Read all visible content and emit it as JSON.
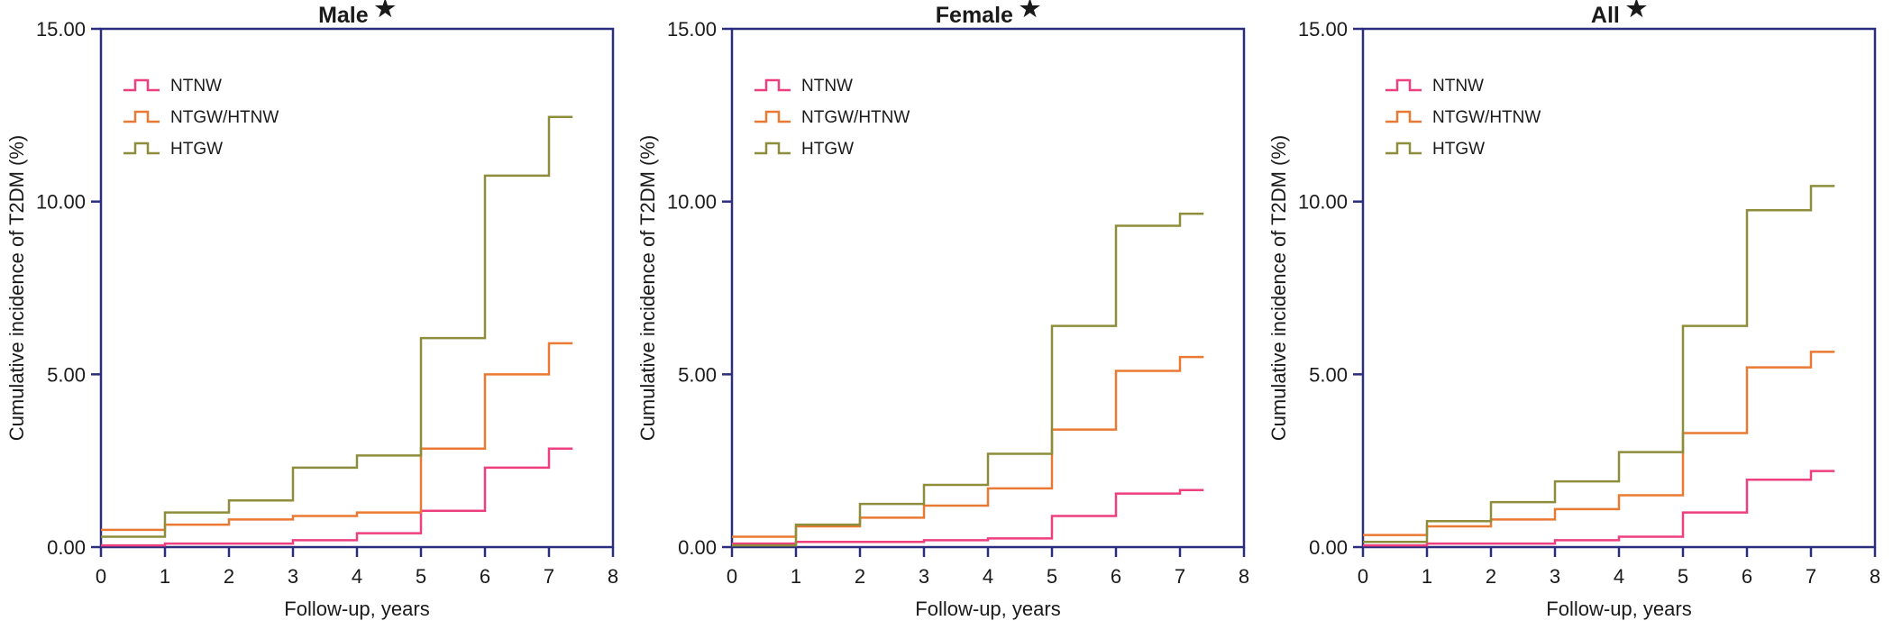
{
  "figure": {
    "ylabel": "Cumulative incidence of T2DM (%)",
    "xlabel": "Follow-up, years",
    "star": "★",
    "legend": [
      "NTNW",
      "NTGW/HTNW",
      "HTGW"
    ],
    "colors": {
      "axis": "#2B2E7F",
      "text": "#1a1a1a",
      "NTNW": "#EE3F7F",
      "NTGW_HTNW": "#EA7A33",
      "HTGW": "#8D8D3C"
    }
  },
  "chart_data": [
    {
      "type": "line",
      "subtype": "step-cumulative-incidence",
      "title": "Male",
      "xlabel": "Follow-up, years",
      "ylabel": "Cumulative incidence of T2DM (%)",
      "xlim": [
        0,
        8
      ],
      "ylim": [
        0,
        15
      ],
      "x_ticks": [
        "0",
        "1",
        "2",
        "3",
        "4",
        "5",
        "6",
        "7",
        "8"
      ],
      "y_ticks": [
        "0.00",
        "5.00",
        "10.00",
        "15.00"
      ],
      "y_tick_values": [
        0,
        5,
        10,
        15
      ],
      "grid": "off",
      "legend_position": "top-left-inside",
      "end_t": 7.37,
      "series": [
        {
          "name": "NTNW",
          "color": "#EE3F7F",
          "steps": [
            [
              0,
              0.05
            ],
            [
              1,
              0.1
            ],
            [
              3,
              0.2
            ],
            [
              4,
              0.4
            ],
            [
              5,
              1.05
            ],
            [
              6,
              2.3
            ],
            [
              7,
              2.85
            ]
          ]
        },
        {
          "name": "NTGW/HTNW",
          "color": "#EA7A33",
          "steps": [
            [
              0,
              0.5
            ],
            [
              1,
              0.65
            ],
            [
              2,
              0.8
            ],
            [
              3,
              0.9
            ],
            [
              4,
              1.0
            ],
            [
              5,
              2.85
            ],
            [
              6,
              5.0
            ],
            [
              7,
              5.9
            ]
          ]
        },
        {
          "name": "HTGW",
          "color": "#8D8D3C",
          "steps": [
            [
              0,
              0.3
            ],
            [
              1,
              1.0
            ],
            [
              2,
              1.35
            ],
            [
              3,
              2.3
            ],
            [
              4,
              2.65
            ],
            [
              5,
              6.05
            ],
            [
              6,
              10.75
            ],
            [
              7,
              12.45
            ]
          ]
        }
      ]
    },
    {
      "type": "line",
      "subtype": "step-cumulative-incidence",
      "title": "Female",
      "xlabel": "Follow-up, years",
      "ylabel": "Cumulative incidence of T2DM (%)",
      "xlim": [
        0,
        8
      ],
      "ylim": [
        0,
        15
      ],
      "x_ticks": [
        "0",
        "1",
        "2",
        "3",
        "4",
        "5",
        "6",
        "7",
        "8"
      ],
      "y_ticks": [
        "0.00",
        "5.00",
        "10.00",
        "15.00"
      ],
      "y_tick_values": [
        0,
        5,
        10,
        15
      ],
      "grid": "off",
      "legend_position": "top-left-inside",
      "end_t": 7.37,
      "series": [
        {
          "name": "NTNW",
          "color": "#EE3F7F",
          "steps": [
            [
              0,
              0.1
            ],
            [
              1,
              0.15
            ],
            [
              3,
              0.2
            ],
            [
              4,
              0.25
            ],
            [
              5,
              0.9
            ],
            [
              6,
              1.55
            ],
            [
              7,
              1.65
            ]
          ]
        },
        {
          "name": "NTGW/HTNW",
          "color": "#EA7A33",
          "steps": [
            [
              0,
              0.3
            ],
            [
              1,
              0.6
            ],
            [
              2,
              0.85
            ],
            [
              3,
              1.2
            ],
            [
              4,
              1.7
            ],
            [
              5,
              3.4
            ],
            [
              6,
              5.1
            ],
            [
              7,
              5.5
            ]
          ]
        },
        {
          "name": "HTGW",
          "color": "#8D8D3C",
          "steps": [
            [
              0,
              0.05
            ],
            [
              1,
              0.65
            ],
            [
              2,
              1.25
            ],
            [
              3,
              1.8
            ],
            [
              4,
              2.7
            ],
            [
              5,
              6.4
            ],
            [
              6,
              9.3
            ],
            [
              7,
              9.65
            ]
          ]
        }
      ]
    },
    {
      "type": "line",
      "subtype": "step-cumulative-incidence",
      "title": "All",
      "xlabel": "Follow-up, years",
      "ylabel": "Cumulative incidence of T2DM (%)",
      "xlim": [
        0,
        8
      ],
      "ylim": [
        0,
        15
      ],
      "x_ticks": [
        "0",
        "1",
        "2",
        "3",
        "4",
        "5",
        "6",
        "7",
        "8"
      ],
      "y_ticks": [
        "0.00",
        "5.00",
        "10.00",
        "15.00"
      ],
      "y_tick_values": [
        0,
        5,
        10,
        15
      ],
      "grid": "off",
      "legend_position": "top-left-inside",
      "end_t": 7.37,
      "series": [
        {
          "name": "NTNW",
          "color": "#EE3F7F",
          "steps": [
            [
              0,
              0.05
            ],
            [
              1,
              0.1
            ],
            [
              3,
              0.2
            ],
            [
              4,
              0.3
            ],
            [
              5,
              1.0
            ],
            [
              6,
              1.95
            ],
            [
              7,
              2.2
            ]
          ]
        },
        {
          "name": "NTGW/HTNW",
          "color": "#EA7A33",
          "steps": [
            [
              0,
              0.35
            ],
            [
              1,
              0.6
            ],
            [
              2,
              0.8
            ],
            [
              3,
              1.1
            ],
            [
              4,
              1.5
            ],
            [
              5,
              3.3
            ],
            [
              6,
              5.2
            ],
            [
              7,
              5.65
            ]
          ]
        },
        {
          "name": "HTGW",
          "color": "#8D8D3C",
          "steps": [
            [
              0,
              0.15
            ],
            [
              1,
              0.75
            ],
            [
              2,
              1.3
            ],
            [
              3,
              1.9
            ],
            [
              4,
              2.75
            ],
            [
              5,
              6.4
            ],
            [
              6,
              9.75
            ],
            [
              7,
              10.45
            ]
          ]
        }
      ]
    }
  ]
}
